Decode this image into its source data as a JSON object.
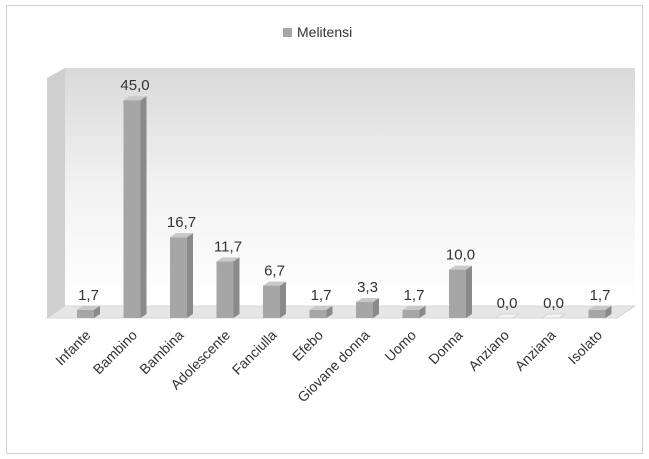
{
  "chart_data": {
    "type": "bar",
    "title": "",
    "legend": {
      "entries": [
        "Melitensi"
      ],
      "placement": "top"
    },
    "categories": [
      "Infante",
      "Bambino",
      "Bambina",
      "Adolescente",
      "Fanciulla",
      "Efebo",
      "Giovane donna",
      "Uomo",
      "Donna",
      "Anziano",
      "Anziana",
      "Isolato"
    ],
    "series": [
      {
        "name": "Melitensi",
        "values": [
          1.7,
          45.0,
          16.7,
          11.7,
          6.7,
          1.7,
          3.3,
          1.7,
          10.0,
          0.0,
          0.0,
          1.7
        ],
        "labels": [
          "1,7",
          "45,0",
          "16,7",
          "11,7",
          "6,7",
          "1,7",
          "3,3",
          "1,7",
          "10,0",
          "0,0",
          "0,0",
          "1,7"
        ]
      }
    ],
    "ylim": [
      0,
      50
    ],
    "grid": false,
    "style": "3d-column",
    "colors": {
      "bar": "#a6a6a6",
      "bar_dark": "#8a8a8a",
      "bar_light": "#c9c9c9",
      "wall": "#e8e8e8"
    }
  }
}
